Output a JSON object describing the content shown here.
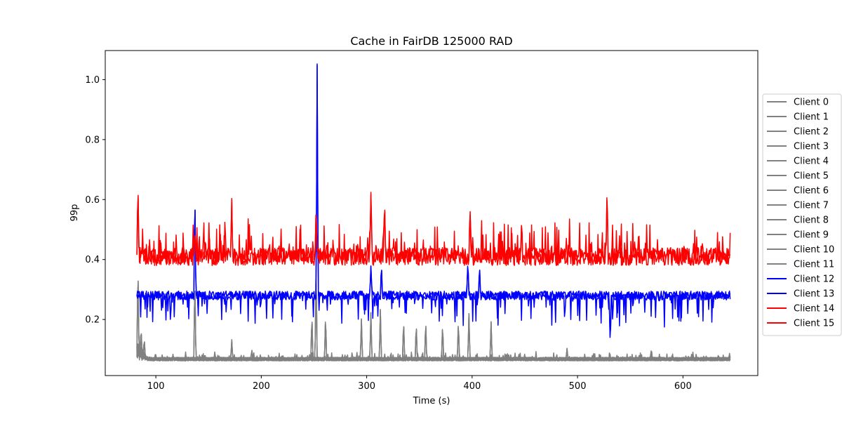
{
  "chart_data": {
    "type": "line",
    "title": "Cache in  FairDB 125000 RAD",
    "xlabel": "Time (s)",
    "ylabel": "99p",
    "xlim": [
      52,
      671
    ],
    "ylim": [
      0.013,
      1.097
    ],
    "xticks": [
      100,
      200,
      300,
      400,
      500,
      600
    ],
    "yticks": [
      0.2,
      0.4,
      0.6,
      0.8,
      1.0
    ],
    "xtick_labels": [
      "100",
      "200",
      "300",
      "400",
      "500",
      "600"
    ],
    "ytick_labels": [
      "0.2",
      "0.4",
      "0.6",
      "0.8",
      "1.0"
    ],
    "x_range": [
      82,
      645
    ],
    "legend_position": "right-outside",
    "series": [
      {
        "name": "Client 0",
        "group": "low",
        "color": "#808080"
      },
      {
        "name": "Client 1",
        "group": "low",
        "color": "#808080"
      },
      {
        "name": "Client 2",
        "group": "low",
        "color": "#808080"
      },
      {
        "name": "Client 3",
        "group": "low",
        "color": "#808080"
      },
      {
        "name": "Client 4",
        "group": "low",
        "color": "#808080"
      },
      {
        "name": "Client 5",
        "group": "low",
        "color": "#808080"
      },
      {
        "name": "Client 6",
        "group": "low",
        "color": "#808080"
      },
      {
        "name": "Client 7",
        "group": "low",
        "color": "#808080"
      },
      {
        "name": "Client 8",
        "group": "low",
        "color": "#808080"
      },
      {
        "name": "Client 9",
        "group": "low",
        "color": "#808080"
      },
      {
        "name": "Client 10",
        "group": "low",
        "color": "#808080"
      },
      {
        "name": "Client 11",
        "group": "low",
        "color": "#808080"
      },
      {
        "name": "Client 12",
        "group": "mid",
        "color": "#0000ff"
      },
      {
        "name": "Client 13",
        "group": "mid",
        "color": "#0000ff"
      },
      {
        "name": "Client 14",
        "group": "high",
        "color": "#ff0000"
      },
      {
        "name": "Client 15",
        "group": "high",
        "color": "#ff0000"
      }
    ],
    "groups": {
      "low": {
        "base": 0.068,
        "noise": 0.012,
        "spikes": [
          [
            83,
            0.38
          ],
          [
            86,
            0.17
          ],
          [
            89,
            0.14
          ],
          [
            137,
            0.35
          ],
          [
            172,
            0.13
          ],
          [
            191,
            0.1
          ],
          [
            248,
            0.22
          ],
          [
            252,
            0.4
          ],
          [
            261,
            0.22
          ],
          [
            295,
            0.2
          ],
          [
            304,
            0.22
          ],
          [
            313,
            0.23
          ],
          [
            335,
            0.2
          ],
          [
            347,
            0.19
          ],
          [
            356,
            0.2
          ],
          [
            372,
            0.19
          ],
          [
            387,
            0.2
          ],
          [
            397,
            0.22
          ],
          [
            418,
            0.19
          ],
          [
            490,
            0.1
          ],
          [
            570,
            0.1
          ]
        ]
      },
      "mid": {
        "base": 0.28,
        "noise": 0.03,
        "spikes": [
          [
            137,
            0.64
          ],
          [
            253,
            1.05
          ],
          [
            304,
            0.38
          ],
          [
            314,
            0.39
          ],
          [
            396,
            0.4
          ],
          [
            407,
            0.38
          ],
          [
            531,
            0.11
          ]
        ]
      },
      "high": {
        "base": 0.4,
        "noise": 0.05,
        "spikes": [
          [
            83,
            0.665
          ],
          [
            137,
            0.5
          ],
          [
            172,
            0.6
          ],
          [
            252,
            0.58
          ],
          [
            304,
            0.62
          ],
          [
            317,
            0.6
          ],
          [
            398,
            0.59
          ],
          [
            447,
            0.54
          ],
          [
            528,
            0.648
          ]
        ]
      }
    }
  }
}
